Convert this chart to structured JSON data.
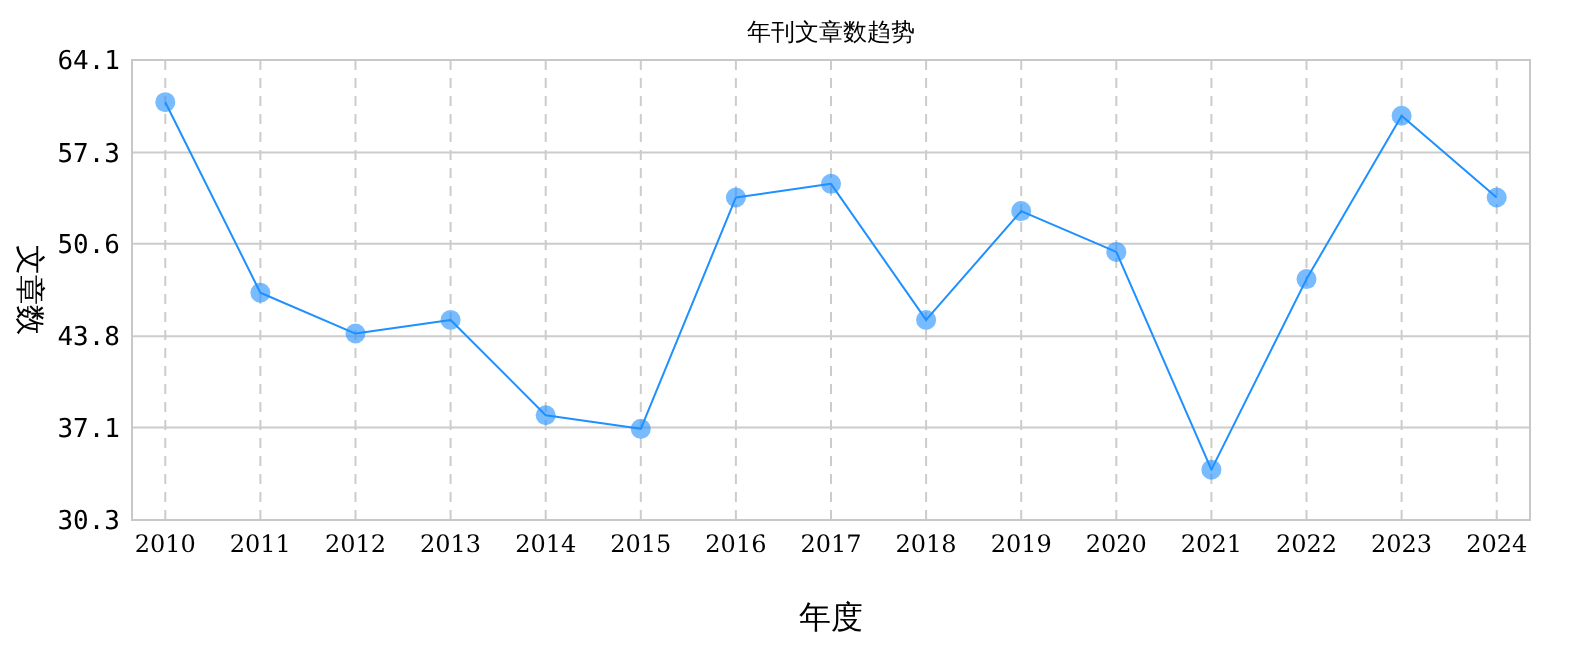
{
  "chart_data": {
    "type": "line",
    "title": "年刊文章数趋势",
    "xlabel": "年度",
    "ylabel": "文章数",
    "categories": [
      "2010",
      "2011",
      "2012",
      "2013",
      "2014",
      "2015",
      "2016",
      "2017",
      "2018",
      "2019",
      "2020",
      "2021",
      "2022",
      "2023",
      "2024"
    ],
    "series": [
      {
        "color": "#1e90ff",
        "values": [
          61,
          47,
          44,
          45,
          38,
          37,
          54,
          55,
          45,
          53,
          50,
          34,
          48,
          60,
          54
        ]
      }
    ],
    "ylim": [
      30.3,
      64.1
    ],
    "yticks": [
      30.3,
      37.1,
      43.8,
      50.6,
      57.3,
      64.1
    ],
    "grid": true,
    "marker": "circle"
  }
}
